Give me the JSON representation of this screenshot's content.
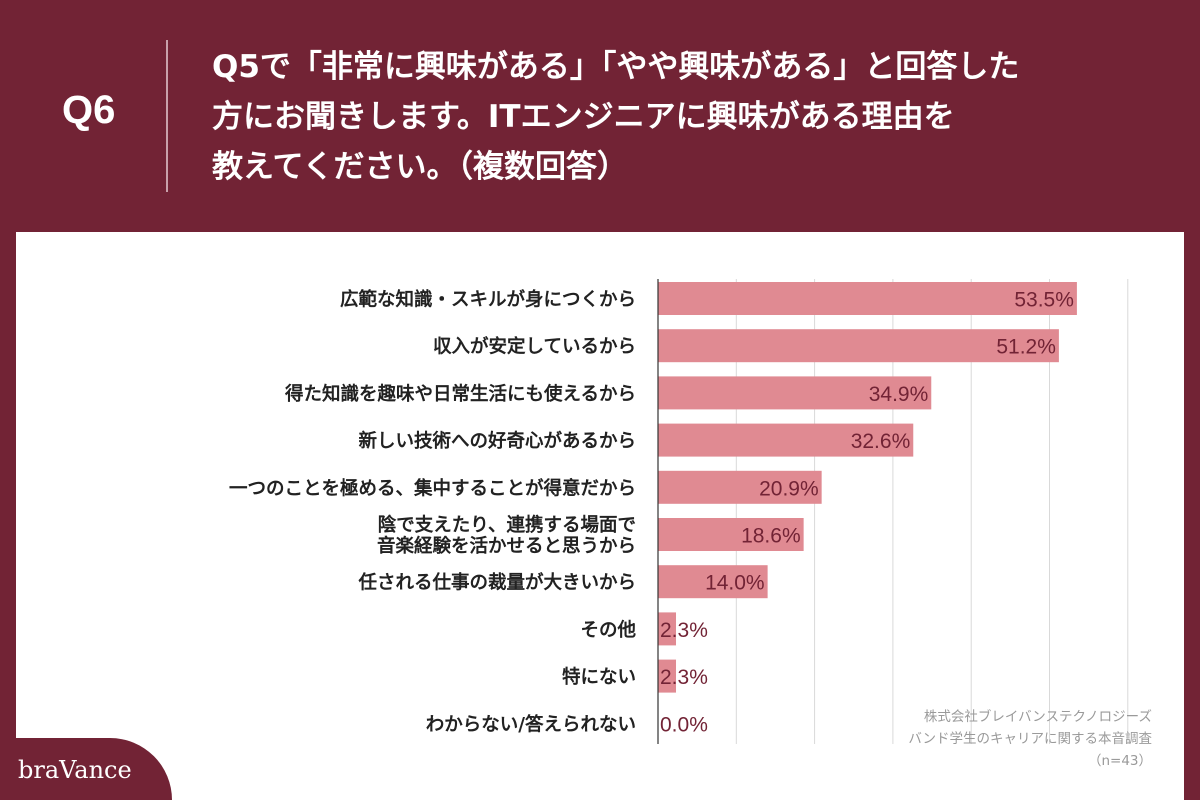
{
  "header": {
    "qnum": "Q6",
    "lines": [
      "Q5で「非常に興味がある」「やや興味がある」と回答した",
      "方にお聞きします。ITエンジニアに興味がある理由を",
      "教えてください。（複数回答）"
    ]
  },
  "chart_data": {
    "type": "bar",
    "orientation": "horizontal",
    "categories": [
      [
        "広範な知識・スキルが身につくから"
      ],
      [
        "収入が安定しているから"
      ],
      [
        "得た知識を趣味や日常生活にも使えるから"
      ],
      [
        "新しい技術への好奇心があるから"
      ],
      [
        "一つのことを極める、集中することが得意だから"
      ],
      [
        "陰で支えたり、連携する場面で",
        "音楽経験を活かせると思うから"
      ],
      [
        "任される仕事の裁量が大きいから"
      ],
      [
        "その他"
      ],
      [
        "特にない"
      ],
      [
        "わからない/答えられない"
      ]
    ],
    "values": [
      53.5,
      51.2,
      34.9,
      32.6,
      20.9,
      18.6,
      14.0,
      2.3,
      2.3,
      0.0
    ],
    "value_labels": [
      "53.5%",
      "51.2%",
      "34.9%",
      "32.6%",
      "20.9%",
      "18.6%",
      "14.0%",
      "2.3%",
      "2.3%",
      "0.0%"
    ],
    "xlim": [
      0,
      60
    ],
    "grid": true,
    "bar_color": "#e08a92",
    "label_color": "#722335"
  },
  "source": {
    "line1": "株式会社ブレイバンステクノロジーズ",
    "line2": "バンド学生のキャリアに関する本音調査",
    "line3": "（n=43）"
  },
  "brand": {
    "logo": "braVance"
  },
  "colors": {
    "background": "#722335",
    "panel": "#ffffff",
    "grid": "#d9d9d9"
  }
}
